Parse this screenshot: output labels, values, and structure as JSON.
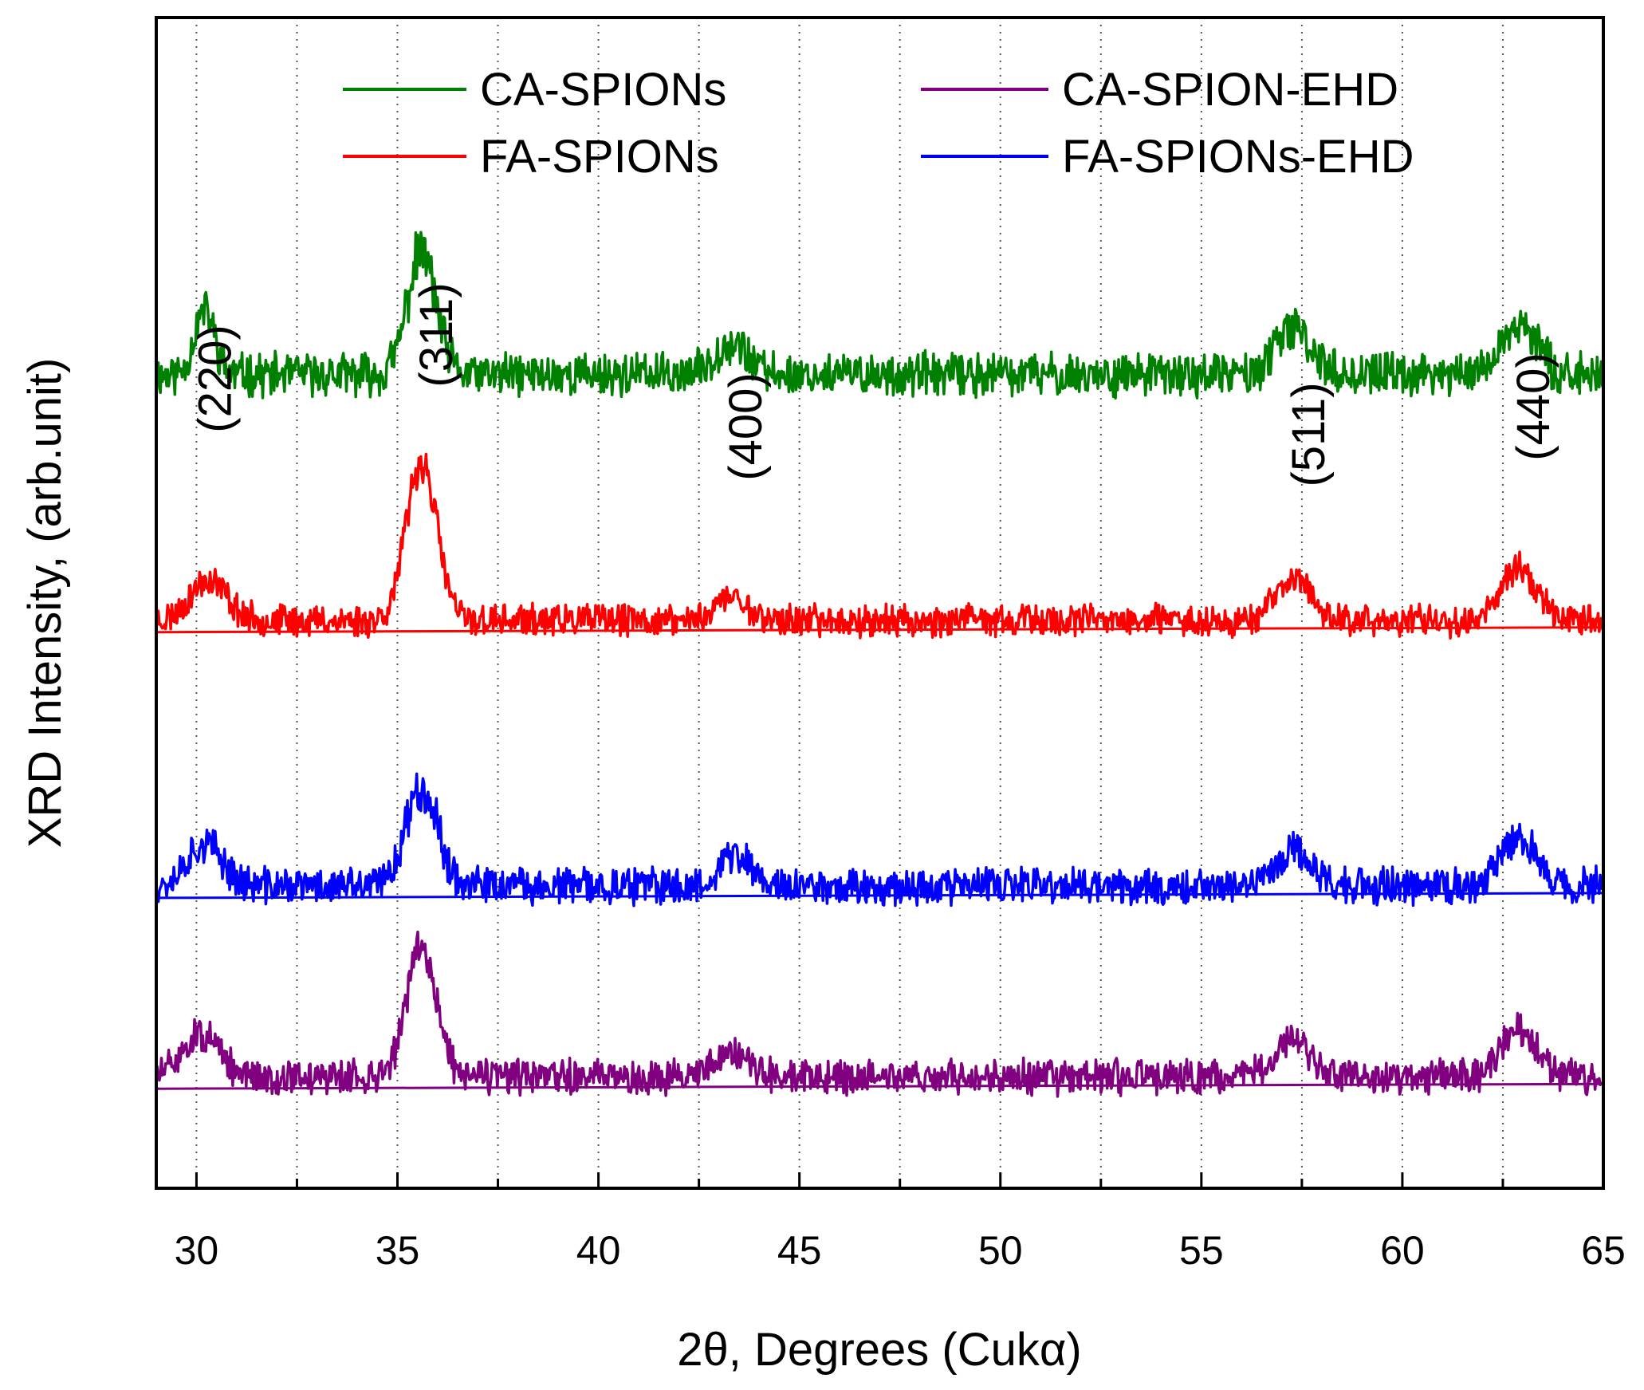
{
  "chart_data": {
    "type": "line",
    "title": "",
    "xlabel": "2θ, Degrees (Cukα)",
    "ylabel": "XRD Intensity, (arb.unit)",
    "xlim": [
      29,
      65
    ],
    "ylim": [
      0,
      100
    ],
    "x_ticks": [
      30,
      35,
      40,
      45,
      50,
      55,
      60,
      65
    ],
    "x_tick_labels": [
      "30",
      "35",
      "40",
      "45",
      "50",
      "55",
      "60",
      "65"
    ],
    "minor_step": 2.5,
    "grid": "vertical dotted at 2.5 steps",
    "legend": {
      "position": "top",
      "columns": 2,
      "entries": [
        {
          "series_index": 0,
          "label": "CA-SPIONs"
        },
        {
          "series_index": 1,
          "label": "FA-SPIONs"
        },
        {
          "series_index": 3,
          "label": "CA-SPION-EHD"
        },
        {
          "series_index": 2,
          "label": "FA-SPIONs-EHD"
        }
      ]
    },
    "peaks": [
      {
        "x": 30.1,
        "label": "(220)"
      },
      {
        "x": 35.6,
        "label": "(311)"
      },
      {
        "x": 43.3,
        "label": "(400)"
      },
      {
        "x": 57.3,
        "label": "(511)"
      },
      {
        "x": 62.9,
        "label": "(440)"
      }
    ],
    "series": [
      {
        "name": "CA-SPIONs",
        "color": "#008000",
        "offset": 69.5,
        "baseline": null,
        "noise": 1.6,
        "seed": 11,
        "peaks": [
          {
            "x": 30.2,
            "h": 5.5,
            "w": 0.25
          },
          {
            "x": 35.6,
            "h": 10.5,
            "w": 0.35
          },
          {
            "x": 43.3,
            "h": 2.8,
            "w": 0.4
          },
          {
            "x": 57.3,
            "h": 3.8,
            "w": 0.45
          },
          {
            "x": 62.9,
            "h": 4.2,
            "w": 0.45
          }
        ]
      },
      {
        "name": "FA-SPIONs",
        "color": "#ff0000",
        "offset": 48.5,
        "baseline": 47.5,
        "noise": 1.2,
        "seed": 23,
        "peaks": [
          {
            "x": 30.3,
            "h": 3.5,
            "w": 0.45
          },
          {
            "x": 35.6,
            "h": 13.5,
            "w": 0.38
          },
          {
            "x": 43.3,
            "h": 2.0,
            "w": 0.4
          },
          {
            "x": 57.3,
            "h": 3.5,
            "w": 0.45
          },
          {
            "x": 62.9,
            "h": 4.5,
            "w": 0.45
          }
        ]
      },
      {
        "name": "FA-SPIONs-EHD",
        "color": "#0000ff",
        "offset": 25.8,
        "baseline": 24.8,
        "noise": 1.4,
        "seed": 37,
        "peaks": [
          {
            "x": 30.2,
            "h": 3.6,
            "w": 0.45
          },
          {
            "x": 35.6,
            "h": 8.5,
            "w": 0.4
          },
          {
            "x": 43.4,
            "h": 2.6,
            "w": 0.4
          },
          {
            "x": 57.3,
            "h": 3.0,
            "w": 0.45
          },
          {
            "x": 62.9,
            "h": 4.0,
            "w": 0.45
          }
        ]
      },
      {
        "name": "CA-SPION-EHD",
        "color": "#800080",
        "offset": 9.5,
        "baseline": 8.5,
        "noise": 1.3,
        "seed": 51,
        "peaks": [
          {
            "x": 30.1,
            "h": 3.6,
            "w": 0.45
          },
          {
            "x": 35.6,
            "h": 11.0,
            "w": 0.38
          },
          {
            "x": 43.3,
            "h": 2.2,
            "w": 0.45
          },
          {
            "x": 57.3,
            "h": 3.0,
            "w": 0.45
          },
          {
            "x": 62.9,
            "h": 3.8,
            "w": 0.45
          }
        ]
      }
    ]
  }
}
